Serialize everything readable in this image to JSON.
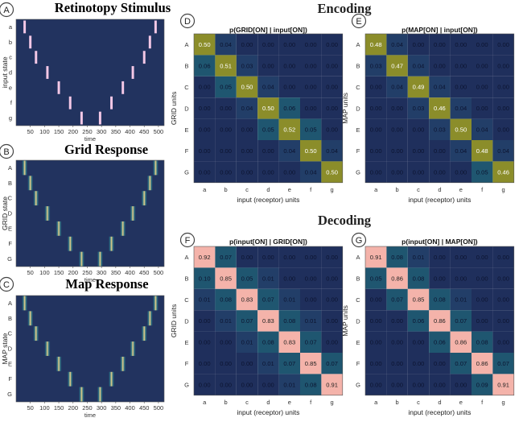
{
  "sections": {
    "encoding": "Encoding",
    "decoding": "Decoding"
  },
  "chart_data": [
    {
      "type": "heatmap",
      "id": "A",
      "badge": "A",
      "title": "Retinotopy Stimulus",
      "xlabel": "time",
      "ylabel": "input state",
      "x_ticks": [
        50,
        100,
        150,
        200,
        250,
        300,
        350,
        400,
        450,
        500
      ],
      "x_range": [
        0,
        520
      ],
      "y_ticks": [
        "a",
        "b",
        "c",
        "d",
        "e",
        "f",
        "g"
      ],
      "kind": "stimulus",
      "pulses": [
        {
          "row": "a",
          "start": 20,
          "end": 40
        },
        {
          "row": "b",
          "start": 40,
          "end": 60
        },
        {
          "row": "c",
          "start": 60,
          "end": 80
        },
        {
          "row": "d",
          "start": 100,
          "end": 120
        },
        {
          "row": "e",
          "start": 140,
          "end": 160
        },
        {
          "row": "f",
          "start": 180,
          "end": 200
        },
        {
          "row": "g",
          "start": 220,
          "end": 240
        },
        {
          "row": "g",
          "start": 285,
          "end": 305
        },
        {
          "row": "f",
          "start": 325,
          "end": 345
        },
        {
          "row": "e",
          "start": 365,
          "end": 385
        },
        {
          "row": "d",
          "start": 400,
          "end": 420
        },
        {
          "row": "c",
          "start": 440,
          "end": 460
        },
        {
          "row": "b",
          "start": 460,
          "end": 480
        },
        {
          "row": "a",
          "start": 480,
          "end": 500
        }
      ]
    },
    {
      "type": "heatmap",
      "id": "B",
      "badge": "B",
      "title": "Grid Response",
      "xlabel": "time",
      "ylabel": "GRID state",
      "x_ticks": [
        50,
        100,
        150,
        200,
        250,
        300,
        350,
        400,
        450,
        500
      ],
      "x_range": [
        0,
        520
      ],
      "y_ticks": [
        "A",
        "B",
        "C",
        "D",
        "E",
        "F",
        "G"
      ],
      "kind": "response"
    },
    {
      "type": "heatmap",
      "id": "C",
      "badge": "C",
      "title": "Map Response",
      "xlabel": "time",
      "ylabel": "MAP state",
      "x_ticks": [
        50,
        100,
        150,
        200,
        250,
        300,
        350,
        400,
        450,
        500
      ],
      "x_range": [
        0,
        520
      ],
      "y_ticks": [
        "A",
        "B",
        "C",
        "D",
        "E",
        "F",
        "G"
      ],
      "kind": "response"
    },
    {
      "type": "heatmap",
      "id": "D",
      "badge": "D",
      "scheme": "enc",
      "title": "p(GRID[ON] | input[ON])",
      "xlabel": "input (receptor) units",
      "ylabel": "GRID units",
      "x_ticks": [
        "a",
        "b",
        "c",
        "d",
        "e",
        "f",
        "g"
      ],
      "y_ticks": [
        "A",
        "B",
        "C",
        "D",
        "E",
        "F",
        "G"
      ],
      "values": [
        [
          "0.50",
          "0.04",
          "0.00",
          "0.00",
          "0.00",
          "0.00",
          "0.00"
        ],
        [
          "0.06",
          "0.51",
          "0.03",
          "0.00",
          "0.00",
          "0.00",
          "0.00"
        ],
        [
          "0.00",
          "0.05",
          "0.50",
          "0.04",
          "0.00",
          "0.00",
          "0.00"
        ],
        [
          "0.00",
          "0.00",
          "0.04",
          "0.50",
          "0.06",
          "0.00",
          "0.00"
        ],
        [
          "0.00",
          "0.00",
          "0.00",
          "0.05",
          "0.52",
          "0.05",
          "0.00"
        ],
        [
          "0.00",
          "0.00",
          "0.00",
          "0.00",
          "0.04",
          "0.50",
          "0.04"
        ],
        [
          "0.00",
          "0.00",
          "0.00",
          "0.00",
          "0.00",
          "0.04",
          "0.50"
        ]
      ]
    },
    {
      "type": "heatmap",
      "id": "E",
      "badge": "E",
      "scheme": "enc",
      "title": "p(MAP[ON] | input[ON])",
      "xlabel": "input (receptor) units",
      "ylabel": "MAP units",
      "x_ticks": [
        "a",
        "b",
        "c",
        "d",
        "e",
        "f",
        "g"
      ],
      "y_ticks": [
        "A",
        "B",
        "C",
        "D",
        "E",
        "F",
        "G"
      ],
      "values": [
        [
          "0.48",
          "0.04",
          "0.00",
          "0.00",
          "0.00",
          "0.00",
          "0.00"
        ],
        [
          "0.03",
          "0.47",
          "0.04",
          "0.00",
          "0.00",
          "0.00",
          "0.00"
        ],
        [
          "0.00",
          "0.04",
          "0.49",
          "0.04",
          "0.00",
          "0.00",
          "0.00"
        ],
        [
          "0.00",
          "0.00",
          "0.03",
          "0.46",
          "0.04",
          "0.00",
          "0.00"
        ],
        [
          "0.00",
          "0.00",
          "0.00",
          "0.03",
          "0.50",
          "0.04",
          "0.00"
        ],
        [
          "0.00",
          "0.00",
          "0.00",
          "0.00",
          "0.04",
          "0.48",
          "0.04"
        ],
        [
          "0.00",
          "0.00",
          "0.00",
          "0.00",
          "0.00",
          "0.05",
          "0.46"
        ]
      ]
    },
    {
      "type": "heatmap",
      "id": "F",
      "badge": "F",
      "scheme": "dec",
      "title": "p(input[ON] | GRID[ON])",
      "xlabel": "input (receptor) units",
      "ylabel": "GRID units",
      "x_ticks": [
        "a",
        "b",
        "c",
        "d",
        "e",
        "f",
        "g"
      ],
      "y_ticks": [
        "A",
        "B",
        "C",
        "D",
        "E",
        "F",
        "G"
      ],
      "values": [
        [
          "0.92",
          "0.07",
          "0.00",
          "0.00",
          "0.00",
          "0.00",
          "0.00"
        ],
        [
          "0.10",
          "0.85",
          "0.05",
          "0.01",
          "0.00",
          "0.00",
          "0.00"
        ],
        [
          "0.01",
          "0.08",
          "0.83",
          "0.07",
          "0.01",
          "0.00",
          "0.00"
        ],
        [
          "0.00",
          "0.01",
          "0.07",
          "0.83",
          "0.08",
          "0.01",
          "0.00"
        ],
        [
          "0.00",
          "0.00",
          "0.01",
          "0.08",
          "0.83",
          "0.07",
          "0.00"
        ],
        [
          "0.00",
          "0.00",
          "0.00",
          "0.01",
          "0.07",
          "0.85",
          "0.07"
        ],
        [
          "0.00",
          "0.00",
          "0.00",
          "0.00",
          "0.01",
          "0.08",
          "0.91"
        ]
      ]
    },
    {
      "type": "heatmap",
      "id": "G",
      "badge": "G",
      "scheme": "dec",
      "title": "p(input[ON] | MAP[ON])",
      "xlabel": "input (receptor) units",
      "ylabel": "MAP units",
      "x_ticks": [
        "a",
        "b",
        "c",
        "d",
        "e",
        "f",
        "g"
      ],
      "y_ticks": [
        "A",
        "B",
        "C",
        "D",
        "E",
        "F",
        "G"
      ],
      "values": [
        [
          "0.91",
          "0.08",
          "0.01",
          "0.00",
          "0.00",
          "0.00",
          "0.00"
        ],
        [
          "0.05",
          "0.86",
          "0.08",
          "0.00",
          "0.00",
          "0.00",
          "0.00"
        ],
        [
          "0.00",
          "0.07",
          "0.85",
          "0.08",
          "0.01",
          "0.00",
          "0.00"
        ],
        [
          "0.00",
          "0.00",
          "0.06",
          "0.86",
          "0.07",
          "0.00",
          "0.00"
        ],
        [
          "0.00",
          "0.00",
          "0.00",
          "0.06",
          "0.86",
          "0.08",
          "0.00"
        ],
        [
          "0.00",
          "0.00",
          "0.00",
          "0.00",
          "0.07",
          "0.86",
          "0.07"
        ],
        [
          "0.00",
          "0.00",
          "0.00",
          "0.00",
          "0.00",
          "0.09",
          "0.91"
        ]
      ]
    }
  ]
}
